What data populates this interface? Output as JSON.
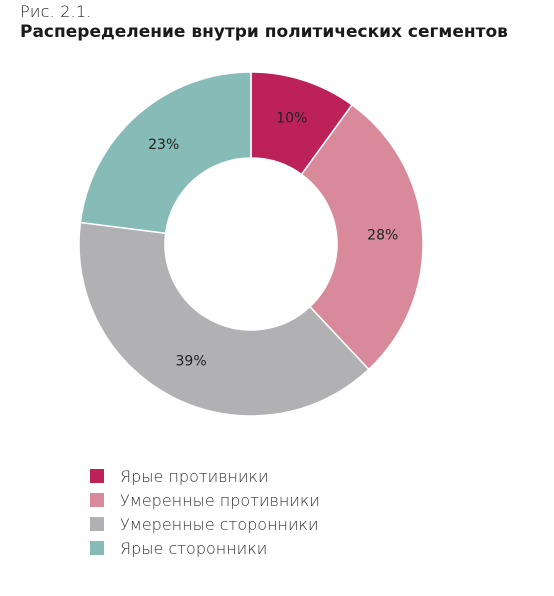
{
  "figure_label": "Рис. 2.1.",
  "chart_data": {
    "type": "pie",
    "donut": true,
    "title": "Распеределение внутри политических сегментов",
    "categories": [
      "Ярые противники",
      "Умеренные противники",
      "Умеренные сторонники",
      "Ярые сторонники"
    ],
    "values": [
      10,
      28,
      39,
      23
    ],
    "data_labels": [
      "10%",
      "28%",
      "39%",
      "23%"
    ],
    "colors": [
      "#bc2257",
      "#d88a9b",
      "#b1b1b3",
      "#86bbb8"
    ],
    "start_angle_deg": 0,
    "direction": "clockwise",
    "legend_position": "bottom-left"
  }
}
